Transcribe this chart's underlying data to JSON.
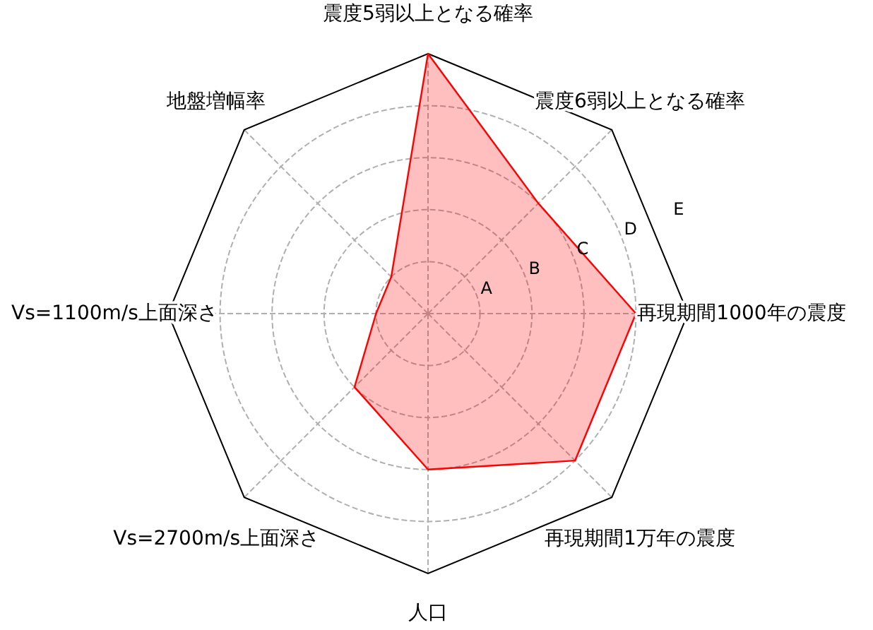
{
  "chart_data": {
    "type": "radar",
    "categories": [
      "震度5弱以上となる確率",
      "震度6弱以上となる確率",
      "再現期間1000年の震度",
      "再現期間1万年の震度",
      "人口",
      "Vs=2700m/s上面深さ",
      "Vs=1100m/s上面深さ",
      "地盤増幅率"
    ],
    "series": [
      {
        "color": "#ff0000",
        "values": [
          5,
          3,
          4,
          4,
          3,
          2,
          1,
          1
        ]
      }
    ],
    "ylim": [
      0,
      5
    ],
    "yticks": [
      {
        "value": 1,
        "label": "A"
      },
      {
        "value": 2,
        "label": "B"
      },
      {
        "value": 3,
        "label": "C"
      },
      {
        "value": 4,
        "label": "D"
      },
      {
        "value": 5,
        "label": "E"
      }
    ],
    "grid": true
  }
}
